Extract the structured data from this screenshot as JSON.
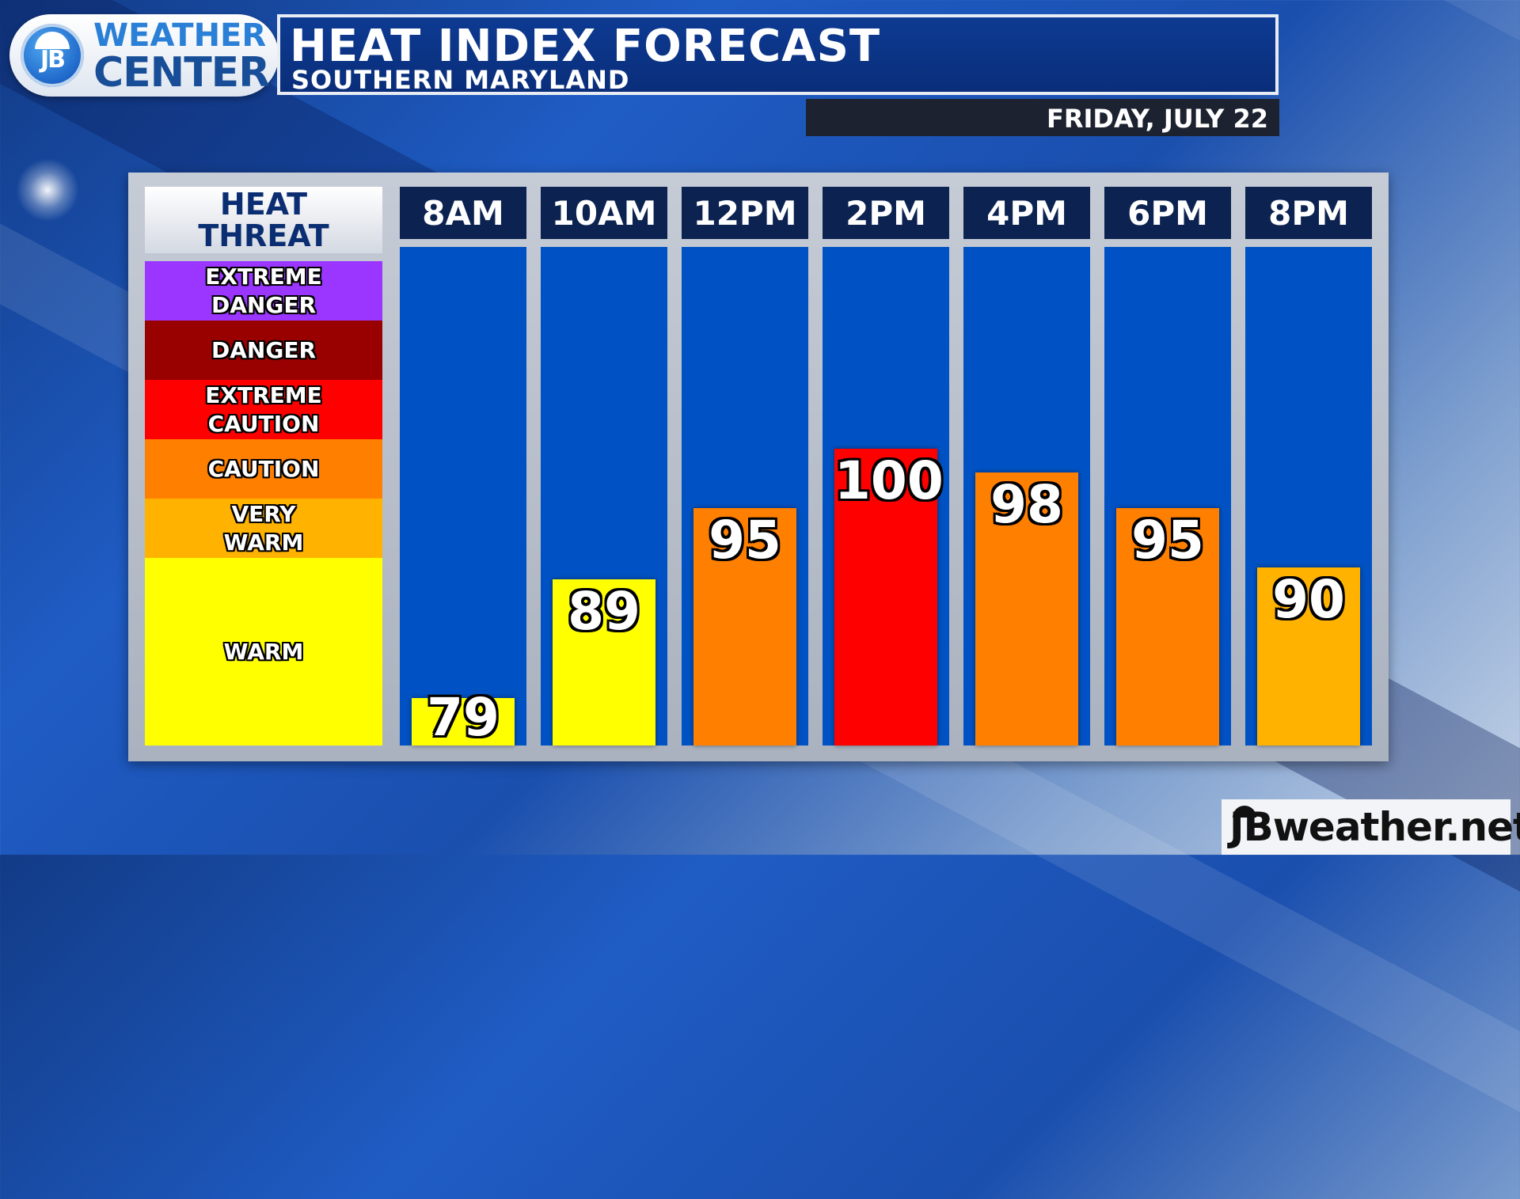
{
  "logo": {
    "badge": "JB",
    "line1": "WEATHER",
    "line2": "CENTER"
  },
  "header": {
    "title": "HEAT INDEX FORECAST",
    "subtitle": "SOUTHERN MARYLAND",
    "date": "FRIDAY, JULY 22"
  },
  "legend": {
    "title_line1": "HEAT",
    "title_line2": "THREAT",
    "bands": [
      {
        "label": "EXTREME\nDANGER",
        "color": "#9a36ff"
      },
      {
        "label": "DANGER",
        "color": "#990000"
      },
      {
        "label": "EXTREME\nCAUTION",
        "color": "#ff0000"
      },
      {
        "label": "CAUTION",
        "color": "#ff7f00"
      },
      {
        "label": "VERY\nWARM",
        "color": "#ffb300"
      },
      {
        "label": "WARM",
        "color": "#ffff00"
      }
    ]
  },
  "chart_data": {
    "type": "bar",
    "title": "HEAT INDEX FORECAST",
    "categories": [
      "8AM",
      "10AM",
      "12PM",
      "2PM",
      "4PM",
      "6PM",
      "8PM"
    ],
    "values": [
      79,
      89,
      95,
      100,
      98,
      95,
      90
    ],
    "bar_colors": [
      "#ffff00",
      "#ffff00",
      "#ff7f00",
      "#ff0000",
      "#ff7f00",
      "#ff7f00",
      "#ffb300"
    ],
    "ylim": [
      75,
      117
    ],
    "grid": false,
    "legend": "left"
  },
  "brand": {
    "url": "JBweather.net"
  }
}
